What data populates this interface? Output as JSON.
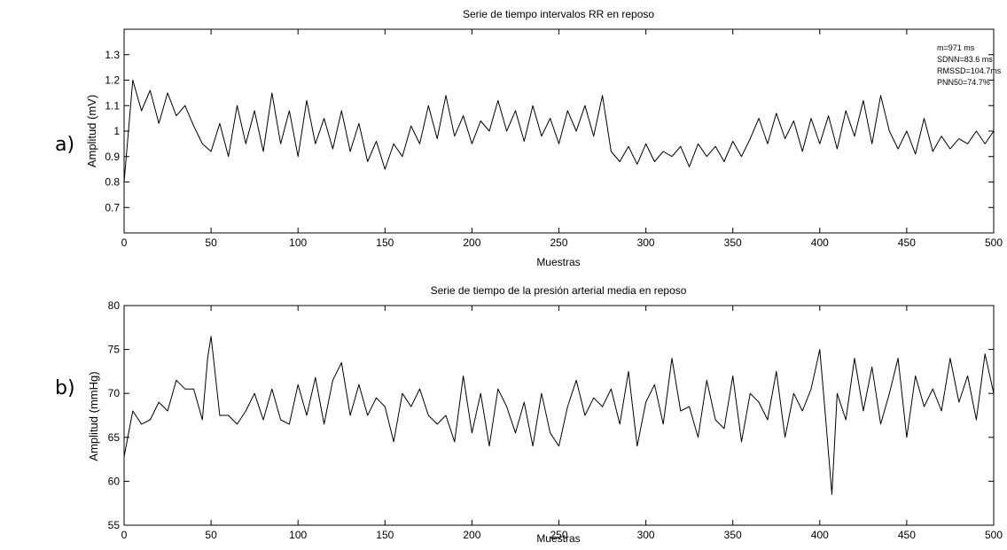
{
  "panels": [
    {
      "letter": "a)",
      "chart_data": {
        "type": "line",
        "title": "Serie de tiempo intervalos RR en reposo",
        "xlabel": "Muestras",
        "ylabel": "Amplitud (mV)",
        "xlim": [
          0,
          500
        ],
        "ylim": [
          0.6,
          1.4
        ],
        "xticks": [
          0,
          50,
          100,
          150,
          200,
          250,
          300,
          350,
          400,
          450,
          500
        ],
        "yticks": [
          0.7,
          0.8,
          0.9,
          1,
          1.1,
          1.2,
          1.3
        ],
        "grid": false,
        "annotations": [
          "m=971 ms",
          "SDNN=83.6 ms",
          "RMSSD=104.7ms",
          "PNN50=74.7%"
        ],
        "series": [
          {
            "color": "#000000",
            "x": [
              0,
              5,
              10,
              15,
              20,
              25,
              30,
              35,
              40,
              45,
              50,
              55,
              60,
              65,
              70,
              75,
              80,
              85,
              90,
              95,
              100,
              105,
              110,
              115,
              120,
              125,
              130,
              135,
              140,
              145,
              150,
              155,
              160,
              165,
              170,
              175,
              180,
              185,
              190,
              195,
              200,
              205,
              210,
              215,
              220,
              225,
              230,
              235,
              240,
              245,
              250,
              255,
              260,
              265,
              270,
              275,
              280,
              285,
              290,
              295,
              300,
              305,
              310,
              315,
              320,
              325,
              330,
              335,
              340,
              345,
              350,
              355,
              360,
              365,
              370,
              375,
              380,
              385,
              390,
              395,
              400,
              405,
              410,
              415,
              420,
              425,
              430,
              435,
              440,
              445,
              450,
              455,
              460,
              465,
              470,
              475,
              480,
              485,
              490,
              495,
              500
            ],
            "values": [
              0.8,
              1.2,
              1.08,
              1.16,
              1.03,
              1.15,
              1.06,
              1.1,
              1.02,
              0.95,
              0.92,
              1.03,
              0.9,
              1.1,
              0.95,
              1.08,
              0.92,
              1.15,
              0.95,
              1.08,
              0.9,
              1.12,
              0.95,
              1.05,
              0.93,
              1.08,
              0.92,
              1.03,
              0.88,
              0.96,
              0.85,
              0.95,
              0.9,
              1.02,
              0.95,
              1.1,
              0.97,
              1.14,
              0.98,
              1.06,
              0.95,
              1.04,
              1.0,
              1.12,
              1.0,
              1.08,
              0.96,
              1.1,
              0.98,
              1.05,
              0.95,
              1.08,
              1.0,
              1.1,
              0.98,
              1.14,
              0.92,
              0.88,
              0.94,
              0.87,
              0.95,
              0.88,
              0.92,
              0.9,
              0.94,
              0.86,
              0.95,
              0.9,
              0.94,
              0.88,
              0.96,
              0.9,
              0.97,
              1.05,
              0.95,
              1.07,
              0.97,
              1.04,
              0.92,
              1.05,
              0.95,
              1.06,
              0.93,
              1.08,
              0.98,
              1.12,
              0.95,
              1.14,
              1.0,
              0.93,
              1.0,
              0.91,
              1.05,
              0.92,
              0.98,
              0.93,
              0.97,
              0.95,
              1.0,
              0.95,
              1.0
            ]
          }
        ]
      }
    },
    {
      "letter": "b)",
      "chart_data": {
        "type": "line",
        "title": "Serie de tiempo de la presión arterial media en reposo",
        "xlabel": "Muestras",
        "ylabel": "Amplitud (mmHg)",
        "xlim": [
          0,
          500
        ],
        "ylim": [
          55,
          80
        ],
        "xticks": [
          0,
          50,
          100,
          150,
          200,
          250,
          300,
          350,
          400,
          450,
          500
        ],
        "yticks": [
          55,
          60,
          65,
          70,
          75,
          80
        ],
        "grid": false,
        "series": [
          {
            "color": "#000000",
            "x": [
              0,
              5,
              10,
              15,
              20,
              25,
              30,
              35,
              40,
              45,
              48,
              50,
              55,
              60,
              65,
              70,
              75,
              80,
              85,
              90,
              95,
              100,
              105,
              110,
              115,
              120,
              125,
              130,
              135,
              140,
              145,
              150,
              155,
              160,
              165,
              170,
              175,
              180,
              185,
              190,
              195,
              200,
              205,
              210,
              215,
              220,
              225,
              230,
              235,
              240,
              245,
              250,
              255,
              260,
              265,
              270,
              275,
              280,
              285,
              290,
              295,
              300,
              305,
              310,
              315,
              320,
              325,
              330,
              335,
              340,
              345,
              350,
              355,
              360,
              365,
              370,
              375,
              380,
              385,
              390,
              395,
              400,
              403,
              407,
              410,
              415,
              420,
              425,
              430,
              435,
              440,
              445,
              450,
              455,
              460,
              465,
              470,
              475,
              480,
              485,
              490,
              495,
              500
            ],
            "values": [
              62.8,
              68,
              66.5,
              67,
              69,
              68,
              71.5,
              70.5,
              70.5,
              67,
              74,
              76.5,
              67.5,
              67.5,
              66.5,
              68,
              70,
              67,
              70.5,
              67,
              66.5,
              71,
              67.5,
              71.8,
              66.5,
              71.5,
              73.5,
              67.5,
              71,
              67.5,
              69.5,
              68.5,
              64.5,
              70,
              68.5,
              70.5,
              67.5,
              66.5,
              67.5,
              64.5,
              72,
              65.5,
              70,
              64,
              70.5,
              68.5,
              65.5,
              69,
              64,
              70,
              65.5,
              64,
              68.5,
              71.5,
              67.5,
              69.5,
              68.5,
              70.5,
              66.5,
              72.5,
              64,
              69,
              71,
              66.5,
              74,
              68,
              68.5,
              65,
              71.5,
              67,
              66,
              72,
              64.5,
              70,
              69,
              67,
              72.5,
              65,
              70,
              68,
              70.5,
              75,
              68,
              58.5,
              70,
              67,
              74,
              68,
              73,
              66.5,
              70,
              74,
              65,
              72,
              68.5,
              70.5,
              68,
              74,
              69,
              72,
              67,
              74.5,
              70
            ]
          }
        ]
      }
    }
  ]
}
